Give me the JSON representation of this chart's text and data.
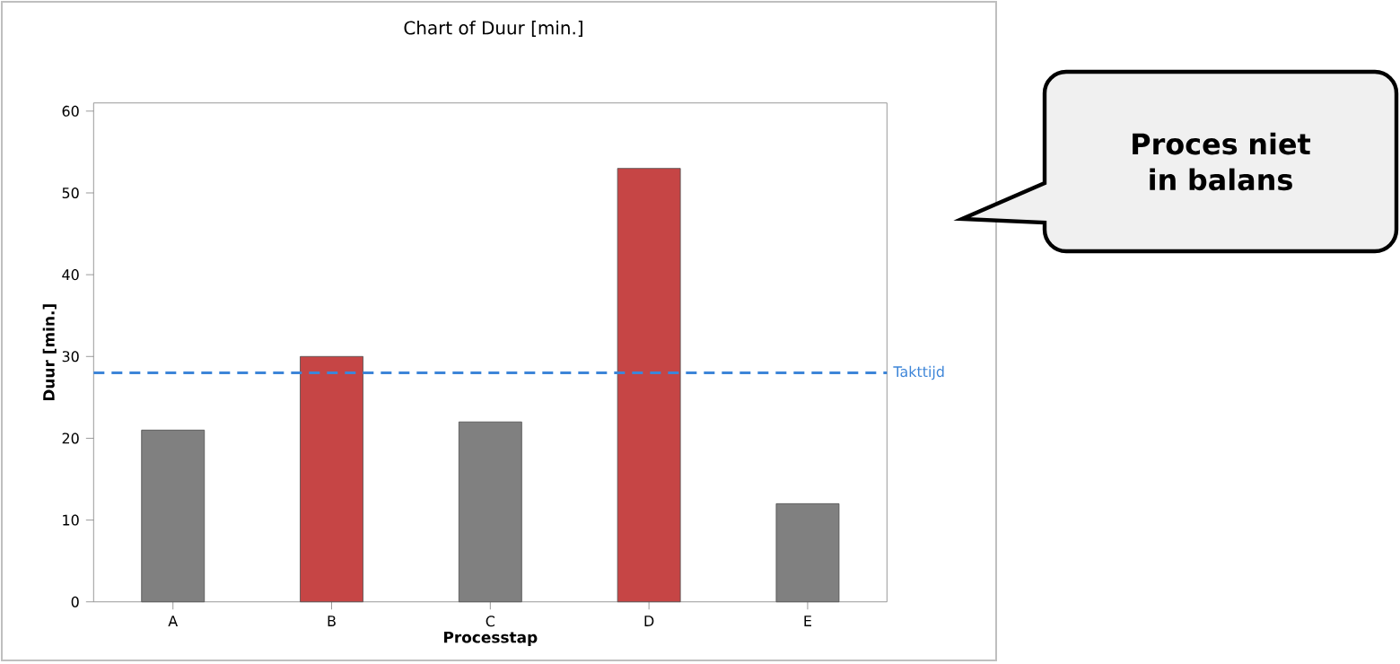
{
  "chart_data": {
    "type": "bar",
    "title": "Chart of Duur [min.]",
    "xlabel": "Processtap",
    "ylabel": "Duur [min.]",
    "categories": [
      "A",
      "B",
      "C",
      "D",
      "E"
    ],
    "values": [
      21,
      30,
      22,
      53,
      12
    ],
    "colors": [
      "#808080",
      "#c64545",
      "#808080",
      "#c64545",
      "#808080"
    ],
    "ylim": [
      0,
      61
    ],
    "yticks": [
      0,
      10,
      20,
      30,
      40,
      50,
      60
    ],
    "ref_lines": [
      {
        "axis": "y",
        "value": 28,
        "label": "Takttijd",
        "color": "#3d85d8",
        "line_style": "dashed"
      }
    ],
    "annotations": [
      "**Proces niet in balans**"
    ],
    "grid": false
  }
}
